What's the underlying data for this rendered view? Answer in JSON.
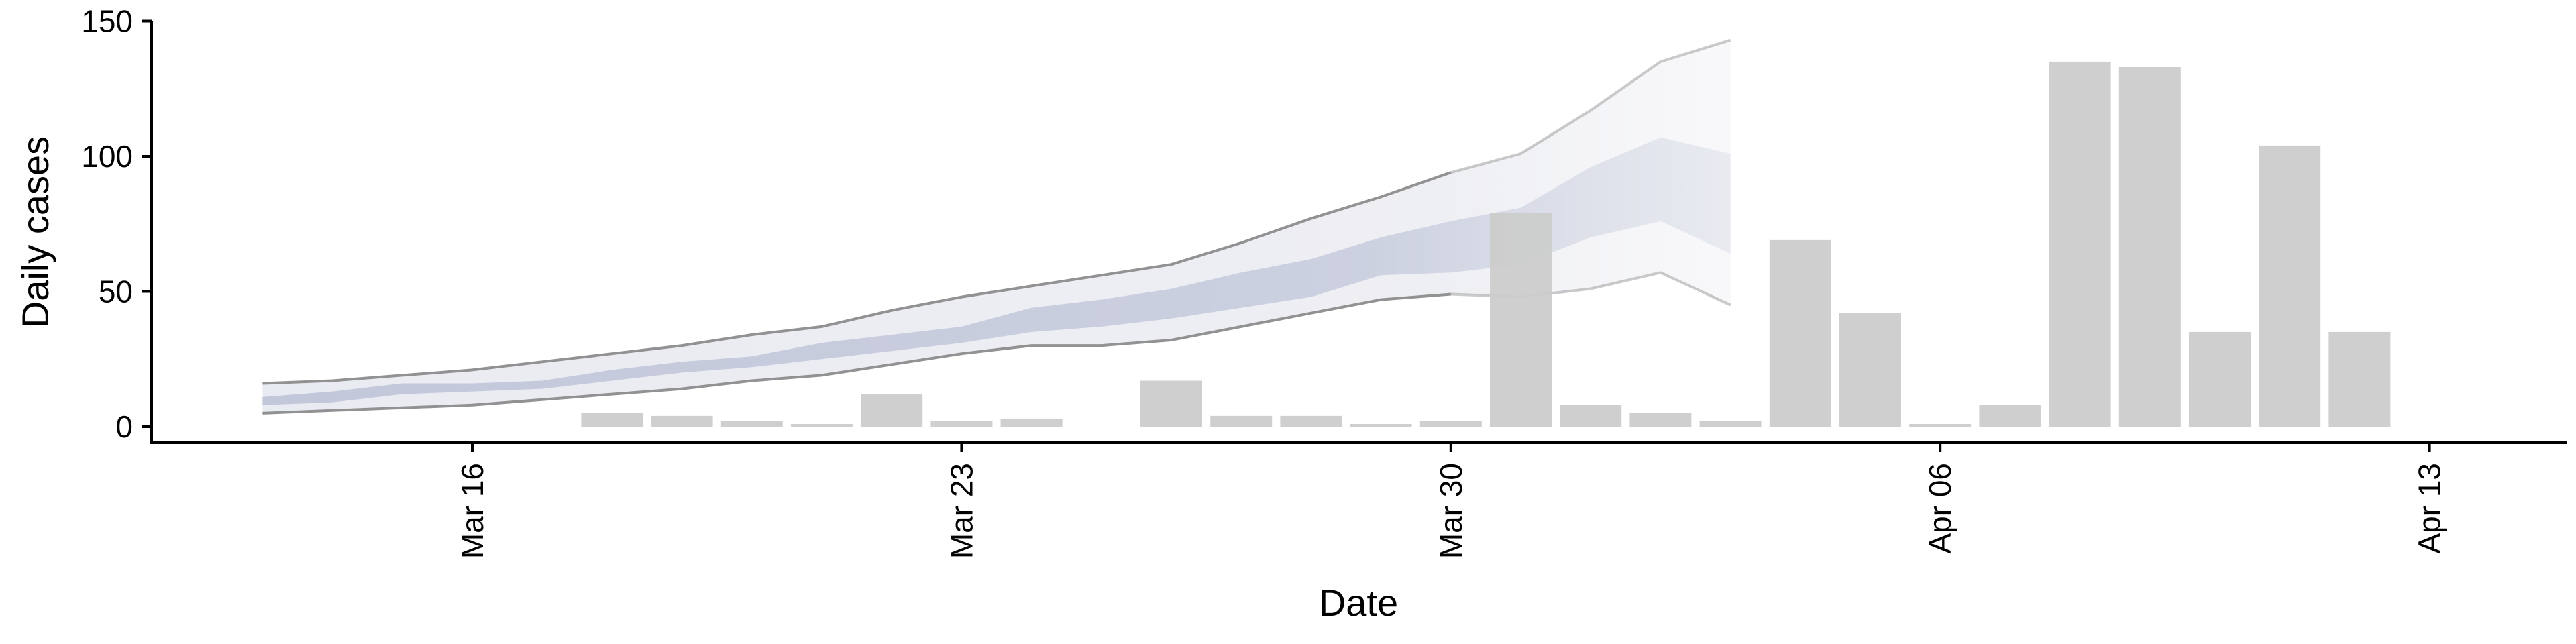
{
  "chart_data": {
    "type": "bar",
    "xlabel": "Date",
    "ylabel": "Daily cases",
    "ylim": [
      0,
      150
    ],
    "xlim": [
      "2020-03-12",
      "2020-04-14"
    ],
    "yticks": [
      0,
      50,
      100,
      150
    ],
    "xticks": [
      {
        "date": "2020-03-16",
        "label": "Mar 16"
      },
      {
        "date": "2020-03-23",
        "label": "Mar 23"
      },
      {
        "date": "2020-03-30",
        "label": "Mar 30"
      },
      {
        "date": "2020-04-06",
        "label": "Apr 06"
      },
      {
        "date": "2020-04-13",
        "label": "Apr 13"
      }
    ],
    "grid": false,
    "bar_color": "#cccccc",
    "bars": [
      {
        "date": "2020-03-18",
        "value": 5
      },
      {
        "date": "2020-03-19",
        "value": 4
      },
      {
        "date": "2020-03-20",
        "value": 2
      },
      {
        "date": "2020-03-21",
        "value": 1
      },
      {
        "date": "2020-03-22",
        "value": 12
      },
      {
        "date": "2020-03-23",
        "value": 2
      },
      {
        "date": "2020-03-24",
        "value": 3
      },
      {
        "date": "2020-03-26",
        "value": 17
      },
      {
        "date": "2020-03-27",
        "value": 4
      },
      {
        "date": "2020-03-28",
        "value": 4
      },
      {
        "date": "2020-03-29",
        "value": 1
      },
      {
        "date": "2020-03-30",
        "value": 2
      },
      {
        "date": "2020-03-31",
        "value": 79
      },
      {
        "date": "2020-04-01",
        "value": 8
      },
      {
        "date": "2020-04-02",
        "value": 5
      },
      {
        "date": "2020-04-03",
        "value": 2
      },
      {
        "date": "2020-04-04",
        "value": 69
      },
      {
        "date": "2020-04-05",
        "value": 42
      },
      {
        "date": "2020-04-06",
        "value": 1
      },
      {
        "date": "2020-04-07",
        "value": 8
      },
      {
        "date": "2020-04-08",
        "value": 135
      },
      {
        "date": "2020-04-09",
        "value": 133
      },
      {
        "date": "2020-04-10",
        "value": 35
      },
      {
        "date": "2020-04-11",
        "value": 104
      },
      {
        "date": "2020-04-12",
        "value": 35
      }
    ],
    "forecast_band": {
      "dates": [
        "2020-03-13",
        "2020-03-14",
        "2020-03-15",
        "2020-03-16",
        "2020-03-17",
        "2020-03-18",
        "2020-03-19",
        "2020-03-20",
        "2020-03-21",
        "2020-03-22",
        "2020-03-23",
        "2020-03-24",
        "2020-03-25",
        "2020-03-26",
        "2020-03-27",
        "2020-03-28",
        "2020-03-29",
        "2020-03-30",
        "2020-03-31",
        "2020-04-01",
        "2020-04-02",
        "2020-04-03"
      ],
      "outer_low": [
        5,
        6,
        7,
        8,
        10,
        12,
        14,
        17,
        19,
        23,
        27,
        30,
        30,
        32,
        37,
        42,
        47,
        49,
        48,
        51,
        57,
        45
      ],
      "outer_high": [
        16,
        17,
        19,
        21,
        24,
        27,
        30,
        34,
        37,
        43,
        48,
        52,
        56,
        60,
        68,
        77,
        85,
        94,
        101,
        117,
        135,
        143
      ],
      "inner_low": [
        8,
        9,
        12,
        13,
        14,
        17,
        20,
        22,
        25,
        28,
        31,
        35,
        37,
        40,
        44,
        48,
        56,
        57,
        60,
        70,
        76,
        64
      ],
      "inner_high": [
        11,
        13,
        16,
        16,
        17,
        21,
        24,
        26,
        31,
        34,
        37,
        44,
        47,
        51,
        57,
        62,
        70,
        76,
        81,
        96,
        107,
        101
      ],
      "inner_color": "#c5cadb",
      "outer_color": "#ebedf2",
      "line_color": "#8c8c8c"
    }
  }
}
